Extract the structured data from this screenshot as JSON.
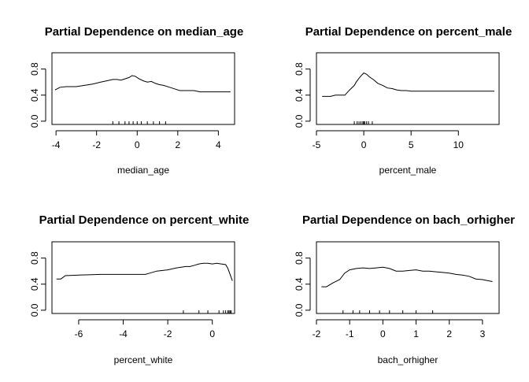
{
  "chart_data": [
    {
      "type": "line",
      "title": "Partial Dependence on median_age",
      "xlabel": "median_age",
      "ylabel": "",
      "xlim": [
        -4.2,
        4.8
      ],
      "ylim": [
        -0.05,
        1.05
      ],
      "xticks": [
        -4,
        -2,
        0,
        2,
        4
      ],
      "xtick_labels": [
        "-4",
        "-2",
        "0",
        "2",
        "4"
      ],
      "yticks": [
        0.0,
        0.4,
        0.8
      ],
      "ytick_labels": [
        "0.0",
        "0.4",
        "0.8"
      ],
      "series": [
        {
          "x": [
            -4.05,
            -3.8,
            -3.5,
            -3.0,
            -2.6,
            -2.2,
            -1.8,
            -1.5,
            -1.2,
            -1.0,
            -0.8,
            -0.6,
            -0.4,
            -0.25,
            -0.1,
            0.1,
            0.3,
            0.5,
            0.7,
            0.9,
            1.1,
            1.3,
            1.6,
            1.9,
            2.1,
            2.4,
            2.8,
            3.1,
            3.5,
            4.0,
            4.6
          ],
          "y": [
            0.48,
            0.52,
            0.53,
            0.53,
            0.55,
            0.57,
            0.6,
            0.62,
            0.64,
            0.64,
            0.63,
            0.65,
            0.67,
            0.7,
            0.69,
            0.65,
            0.62,
            0.6,
            0.61,
            0.58,
            0.56,
            0.55,
            0.52,
            0.49,
            0.47,
            0.47,
            0.47,
            0.45,
            0.45,
            0.45,
            0.45
          ]
        }
      ],
      "rug": [
        -1.2,
        -0.9,
        -0.6,
        -0.4,
        -0.2,
        0.0,
        0.2,
        0.5,
        0.8,
        1.1,
        1.4
      ]
    },
    {
      "type": "line",
      "title": "Partial Dependence on percent_male",
      "xlabel": "percent_male",
      "ylabel": "",
      "xlim": [
        -5.0,
        14.3
      ],
      "ylim": [
        -0.05,
        1.05
      ],
      "xticks": [
        -5,
        0,
        5,
        10
      ],
      "xtick_labels": [
        "-5",
        "0",
        "5",
        "10"
      ],
      "yticks": [
        0.0,
        0.4,
        0.8
      ],
      "ytick_labels": [
        "0.0",
        "0.4",
        "0.8"
      ],
      "series": [
        {
          "x": [
            -4.4,
            -3.5,
            -3.0,
            -2.0,
            -1.5,
            -1.2,
            -1.0,
            -0.8,
            -0.5,
            -0.2,
            0.0,
            0.3,
            0.6,
            1.0,
            1.5,
            2.0,
            2.5,
            3.0,
            3.5,
            4.0,
            4.5,
            5.0,
            6.0,
            8.0,
            10.0,
            12.0,
            13.8
          ],
          "y": [
            0.38,
            0.38,
            0.4,
            0.4,
            0.48,
            0.52,
            0.55,
            0.6,
            0.66,
            0.71,
            0.74,
            0.72,
            0.68,
            0.64,
            0.58,
            0.55,
            0.51,
            0.5,
            0.48,
            0.47,
            0.47,
            0.46,
            0.46,
            0.46,
            0.46,
            0.46,
            0.46
          ]
        }
      ],
      "rug": [
        -1.0,
        -0.7,
        -0.5,
        -0.3,
        -0.1,
        0.0,
        0.1,
        0.3,
        0.5,
        0.9
      ]
    },
    {
      "type": "line",
      "title": "Partial Dependence on percent_white",
      "xlabel": "percent_white",
      "ylabel": "",
      "xlim": [
        -7.2,
        1.0
      ],
      "ylim": [
        -0.05,
        1.05
      ],
      "xticks": [
        -6,
        -4,
        -2,
        0
      ],
      "xtick_labels": [
        "-6",
        "-4",
        "-2",
        "0"
      ],
      "yticks": [
        0.0,
        0.4,
        0.8
      ],
      "ytick_labels": [
        "0.0",
        "0.4",
        "0.8"
      ],
      "series": [
        {
          "x": [
            -7.0,
            -6.8,
            -6.6,
            -6.0,
            -5.0,
            -4.0,
            -3.0,
            -2.8,
            -2.5,
            -2.0,
            -1.6,
            -1.2,
            -1.0,
            -0.8,
            -0.6,
            -0.4,
            -0.2,
            0.0,
            0.2,
            0.4,
            0.6,
            0.7,
            0.8,
            0.9
          ],
          "y": [
            0.48,
            0.48,
            0.53,
            0.54,
            0.55,
            0.55,
            0.55,
            0.57,
            0.6,
            0.62,
            0.65,
            0.67,
            0.67,
            0.69,
            0.71,
            0.72,
            0.72,
            0.71,
            0.72,
            0.71,
            0.7,
            0.64,
            0.55,
            0.45
          ]
        }
      ],
      "rug": [
        -1.3,
        -0.6,
        -0.2,
        0.3,
        0.5,
        0.6,
        0.7,
        0.75,
        0.8,
        0.85
      ]
    },
    {
      "type": "line",
      "title": "Partial Dependence on bach_orhigher",
      "xlabel": "bach_orhigher",
      "ylabel": "",
      "xlim": [
        -2.0,
        3.5
      ],
      "ylim": [
        -0.05,
        1.05
      ],
      "xticks": [
        -2,
        -1,
        0,
        1,
        2,
        3
      ],
      "xtick_labels": [
        "-2",
        "-1",
        "0",
        "1",
        "2",
        "3"
      ],
      "yticks": [
        0.0,
        0.4,
        0.8
      ],
      "ytick_labels": [
        "0.0",
        "0.4",
        "0.8"
      ],
      "series": [
        {
          "x": [
            -1.85,
            -1.7,
            -1.5,
            -1.3,
            -1.15,
            -1.0,
            -0.8,
            -0.6,
            -0.4,
            -0.2,
            0.0,
            0.2,
            0.4,
            0.6,
            0.8,
            1.0,
            1.2,
            1.4,
            1.6,
            1.8,
            2.0,
            2.2,
            2.4,
            2.6,
            2.8,
            3.0,
            3.3
          ],
          "y": [
            0.36,
            0.36,
            0.42,
            0.47,
            0.57,
            0.62,
            0.64,
            0.65,
            0.64,
            0.65,
            0.66,
            0.64,
            0.6,
            0.6,
            0.61,
            0.62,
            0.6,
            0.6,
            0.59,
            0.58,
            0.57,
            0.55,
            0.54,
            0.52,
            0.48,
            0.47,
            0.44
          ]
        }
      ],
      "rug": [
        -1.2,
        -0.9,
        -0.7,
        -0.4,
        -0.1,
        0.2,
        0.6,
        1.0,
        1.5
      ]
    }
  ]
}
